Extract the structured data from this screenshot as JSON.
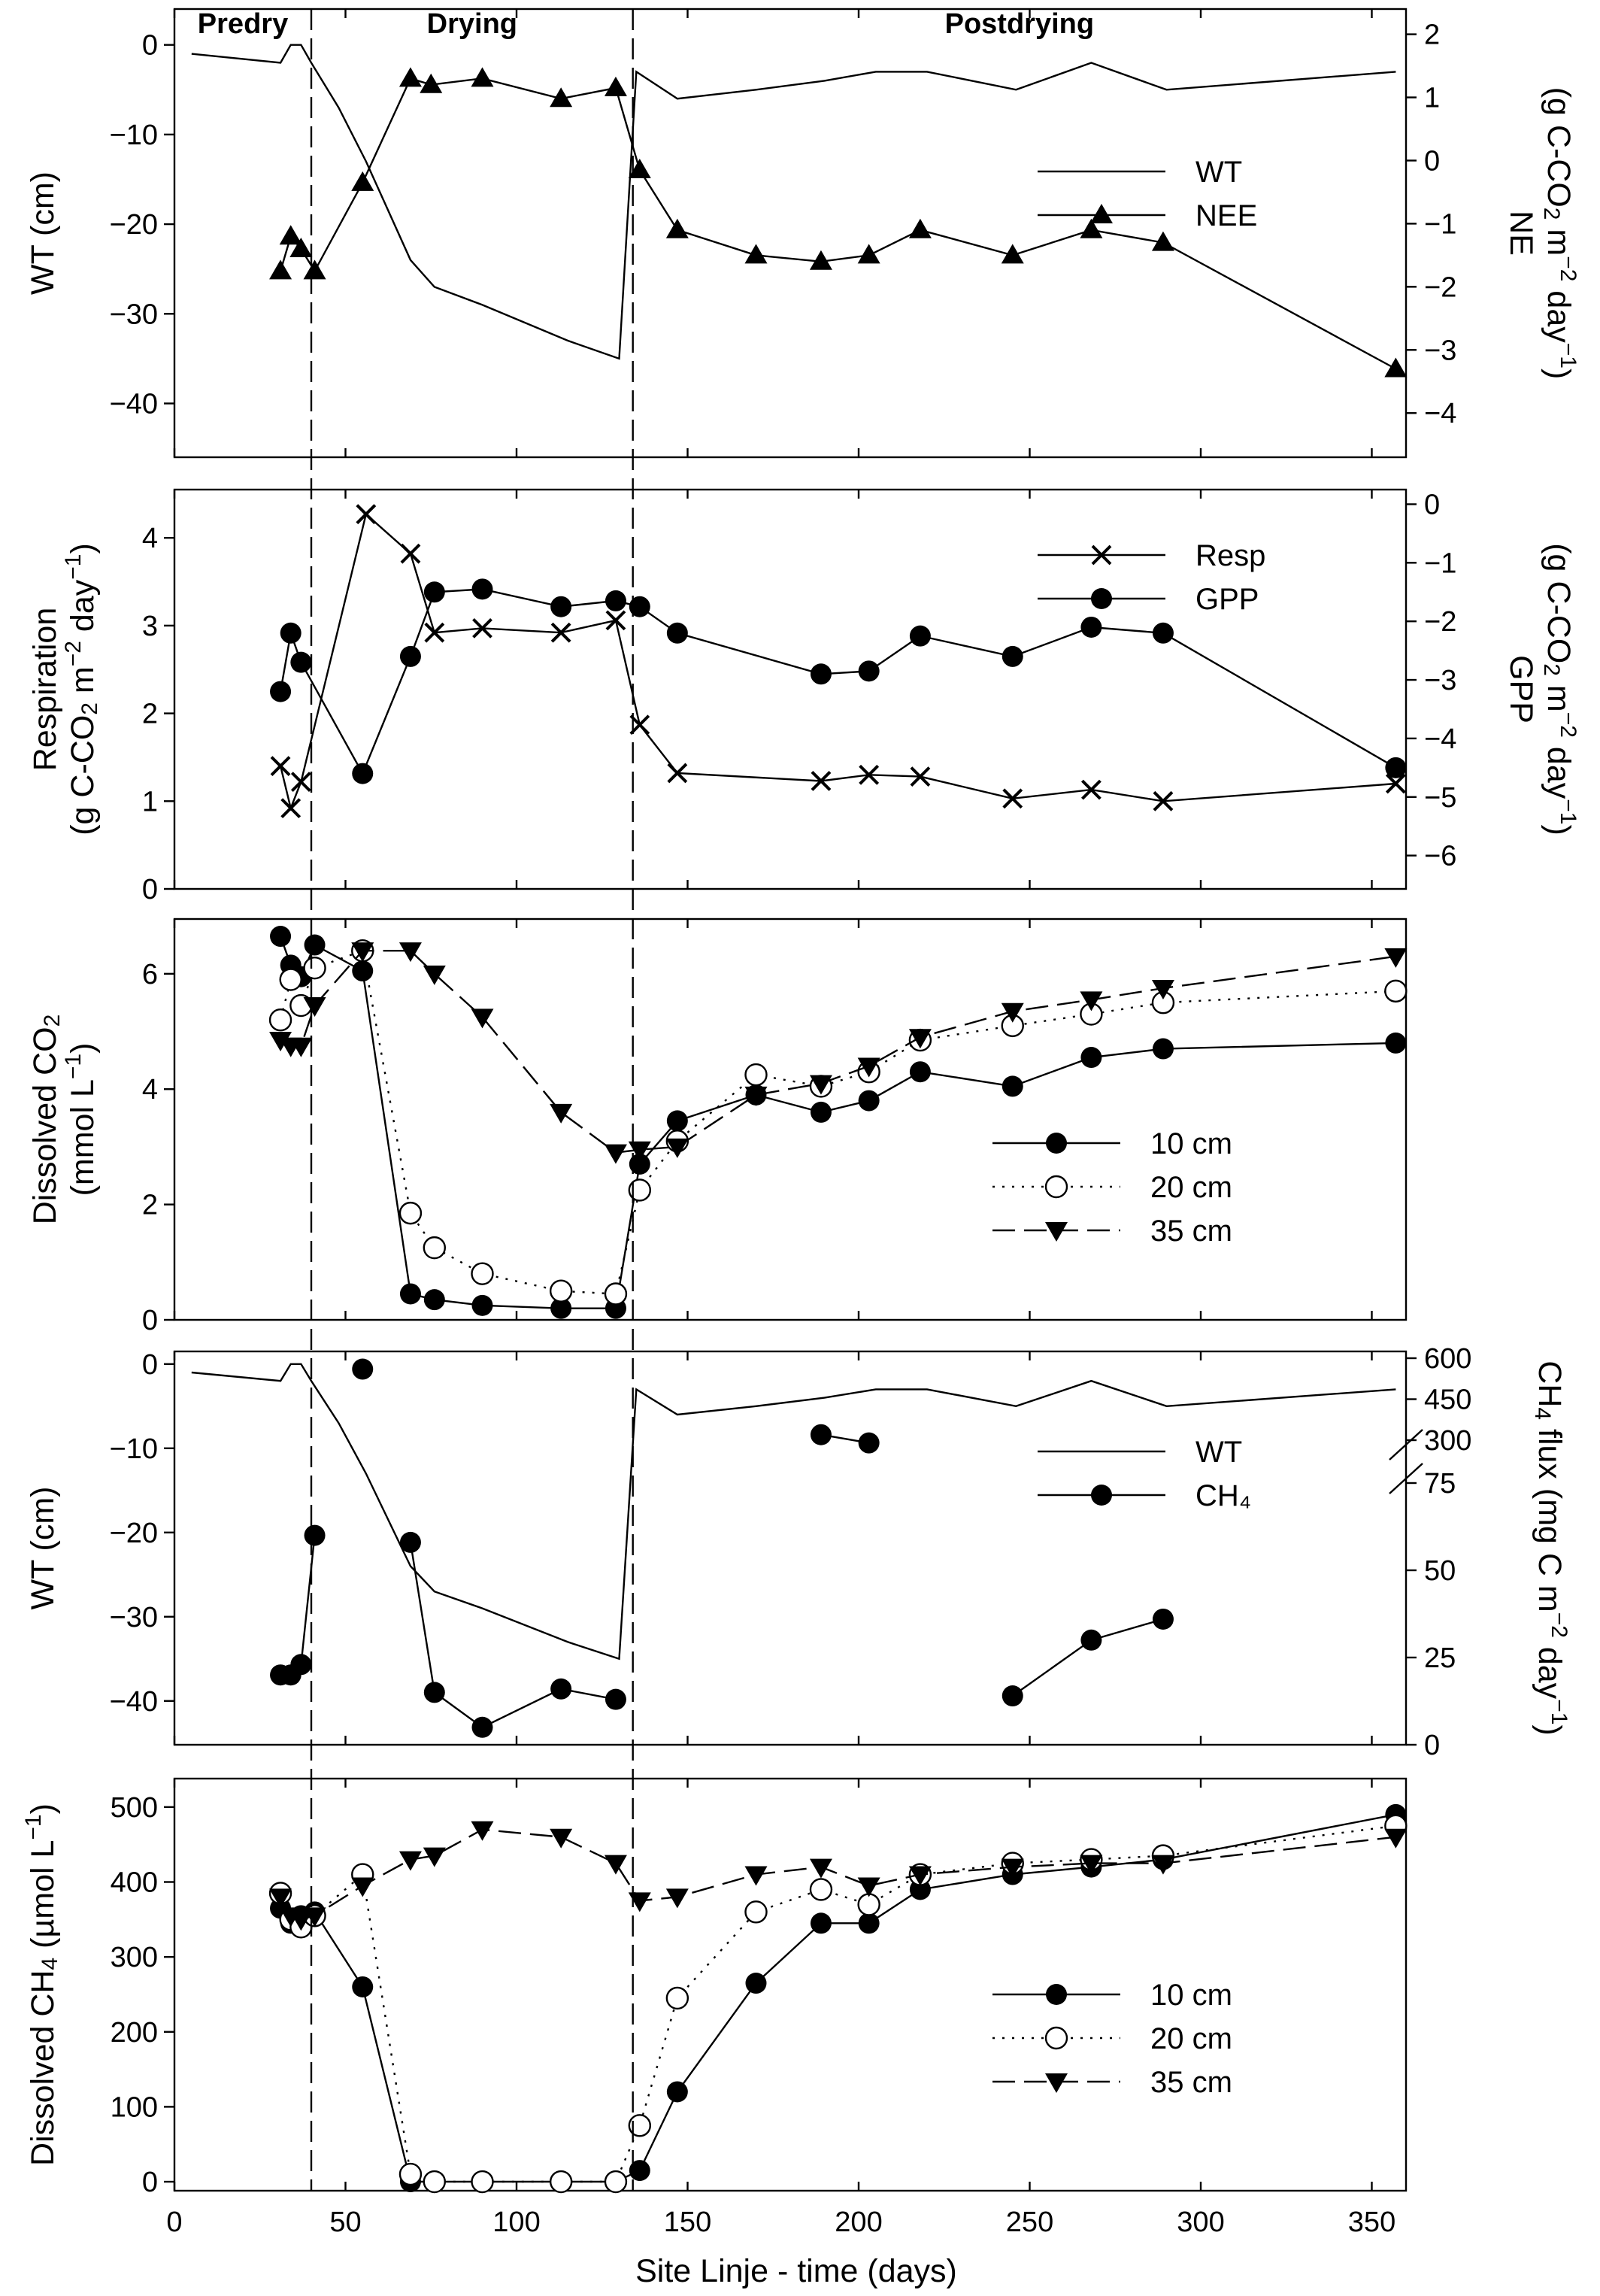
{
  "figure": {
    "x_axis_label": "Site Linje - time (days)",
    "x_ticks": [
      0,
      50,
      100,
      150,
      200,
      250,
      300,
      350
    ],
    "x_range": [
      0,
      360
    ],
    "phases": [
      {
        "label": "Predry",
        "from": 0,
        "to": 40
      },
      {
        "label": "Drying",
        "from": 40,
        "to": 134
      },
      {
        "label": "Postdrying",
        "from": 134,
        "to": 360
      }
    ],
    "phase_dividers": [
      40,
      134
    ]
  },
  "chart_data": [
    {
      "type": "line",
      "panel": "wt-nee",
      "y_label": "WT (cm)",
      "y2_label": "NE (g C-CO₂ m⁻² day⁻¹)",
      "ylim": [
        -46,
        4
      ],
      "y_ticks": [
        0,
        -10,
        -20,
        -30,
        -40
      ],
      "y2lim": [
        -4.7,
        2.4
      ],
      "y2_ticks": [
        2,
        1,
        0,
        -1,
        -2,
        -3,
        -4
      ],
      "series": [
        {
          "name": "WT",
          "axis": "left",
          "marker": "none",
          "dash": "solid",
          "x": [
            5,
            31,
            34,
            37,
            40,
            48,
            56,
            69,
            76,
            90,
            115,
            130,
            135,
            147,
            170,
            190,
            205,
            220,
            246,
            268,
            290,
            357
          ],
          "y": [
            -1,
            -2,
            0,
            0,
            -2,
            -7,
            -13,
            -24,
            -27,
            -29,
            -33,
            -35,
            -3,
            -6,
            -5,
            -4,
            -3,
            -3,
            -5,
            -2,
            -5,
            -3
          ]
        },
        {
          "name": "NEE",
          "axis": "right",
          "marker": "triangle-up-filled",
          "dash": "solid",
          "x": [
            31,
            34,
            37,
            41,
            55,
            69,
            75,
            90,
            113,
            129,
            136,
            147,
            170,
            189,
            203,
            218,
            245,
            268,
            289,
            357
          ],
          "y": [
            -1.75,
            -1.2,
            -1.4,
            -1.75,
            -0.35,
            1.3,
            1.2,
            1.3,
            0.98,
            1.15,
            -0.15,
            -1.1,
            -1.5,
            -1.6,
            -1.5,
            -1.1,
            -1.5,
            -1.1,
            -1.3,
            -3.3
          ]
        }
      ]
    },
    {
      "type": "line",
      "panel": "resp-gpp",
      "y_label": "Respiration (g C-CO₂ m⁻² day⁻¹)",
      "y2_label": "GPP (g C-CO₂ m⁻² day⁻¹)",
      "ylim": [
        0,
        4.55
      ],
      "y_ticks": [
        0,
        1,
        2,
        3,
        4
      ],
      "y2lim": [
        -6.57,
        0.25
      ],
      "y2_ticks": [
        0,
        -1,
        -2,
        -3,
        -4,
        -5,
        -6
      ],
      "series": [
        {
          "name": "Resp",
          "axis": "left",
          "marker": "x",
          "dash": "solid",
          "x": [
            31,
            34,
            37,
            56,
            69,
            76,
            90,
            113,
            129,
            136,
            147,
            189,
            203,
            218,
            245,
            268,
            289,
            357
          ],
          "y": [
            1.4,
            0.92,
            1.22,
            4.27,
            3.82,
            2.92,
            2.97,
            2.92,
            3.06,
            1.87,
            1.32,
            1.23,
            1.3,
            1.28,
            1.03,
            1.13,
            1.0,
            1.2
          ]
        },
        {
          "name": "GPP",
          "axis": "right",
          "marker": "circle-filled",
          "dash": "solid",
          "x": [
            31,
            34,
            37,
            55,
            69,
            76,
            90,
            113,
            129,
            136,
            147,
            189,
            203,
            218,
            245,
            268,
            289,
            357
          ],
          "y": [
            -3.2,
            -2.2,
            -2.7,
            -4.6,
            -2.6,
            -1.5,
            -1.45,
            -1.75,
            -1.65,
            -1.75,
            -2.2,
            -2.9,
            -2.85,
            -2.25,
            -2.6,
            -2.1,
            -2.2,
            -4.5
          ]
        }
      ]
    },
    {
      "type": "line",
      "panel": "dissolved-co2",
      "y_label": "Dissolved CO₂ (mmol L⁻¹)",
      "ylim": [
        0,
        6.95
      ],
      "y_ticks": [
        0,
        2,
        4,
        6
      ],
      "series": [
        {
          "name": "10 cm",
          "marker": "circle-filled",
          "dash": "solid",
          "x": [
            31,
            34,
            37,
            41,
            55,
            69,
            76,
            90,
            113,
            129,
            136,
            147,
            170,
            189,
            203,
            218,
            245,
            268,
            289,
            357
          ],
          "y": [
            6.65,
            6.15,
            5.95,
            6.5,
            6.05,
            0.45,
            0.35,
            0.25,
            0.2,
            0.2,
            2.7,
            3.45,
            3.9,
            3.6,
            3.8,
            4.3,
            4.05,
            4.55,
            4.7,
            4.8
          ]
        },
        {
          "name": "20 cm",
          "marker": "circle-open",
          "dash": "dotted",
          "x": [
            31,
            34,
            37,
            41,
            55,
            69,
            76,
            90,
            113,
            129,
            136,
            147,
            170,
            189,
            203,
            218,
            245,
            268,
            289,
            357
          ],
          "y": [
            5.2,
            5.9,
            5.45,
            6.1,
            6.4,
            1.85,
            1.25,
            0.8,
            0.5,
            0.45,
            2.25,
            3.1,
            4.25,
            4.05,
            4.3,
            4.85,
            5.1,
            5.3,
            5.5,
            5.7
          ]
        },
        {
          "name": "35 cm",
          "marker": "triangle-down-filled",
          "dash": "dashed",
          "x": [
            31,
            34,
            37,
            41,
            55,
            69,
            76,
            90,
            113,
            129,
            136,
            147,
            170,
            189,
            203,
            218,
            245,
            268,
            289,
            357
          ],
          "y": [
            4.85,
            4.75,
            4.75,
            5.45,
            6.4,
            6.4,
            6.0,
            5.25,
            3.6,
            2.9,
            2.95,
            3.0,
            3.9,
            4.1,
            4.4,
            4.9,
            5.35,
            5.55,
            5.75,
            6.3
          ]
        }
      ]
    },
    {
      "type": "line",
      "panel": "wt-ch4",
      "y_label": "WT (cm)",
      "y2_label": "CH₄ flux (mg C m⁻² day⁻¹)",
      "ylim": [
        -45.2,
        1.5
      ],
      "y_ticks": [
        0,
        -10,
        -20,
        -30,
        -40
      ],
      "y2lim": [
        0,
        600
      ],
      "y2_ticks": [
        {
          "label": "0",
          "value": 0
        },
        {
          "label": "25",
          "value": 25
        },
        {
          "label": "50",
          "value": 50
        },
        {
          "label": "75",
          "value": 75
        },
        {
          "label": "300",
          "value": 300
        },
        {
          "label": "450",
          "value": 450
        },
        {
          "label": "600",
          "value": 600
        }
      ],
      "y2_axis_break": "between 75 and 300",
      "series": [
        {
          "name": "WT",
          "axis": "left",
          "marker": "none",
          "dash": "solid",
          "x": [
            5,
            31,
            34,
            37,
            40,
            48,
            56,
            69,
            76,
            90,
            115,
            130,
            135,
            147,
            170,
            190,
            205,
            220,
            246,
            268,
            290,
            357
          ],
          "y": [
            -1,
            -2,
            0,
            0,
            -2,
            -7,
            -13,
            -24,
            -27,
            -29,
            -33,
            -35,
            -3,
            -6,
            -5,
            -4,
            -3,
            -3,
            -5,
            -2,
            -5,
            -3
          ]
        },
        {
          "name": "CH₄",
          "axis": "right",
          "marker": "circle-filled",
          "dash": "solid",
          "segments": [
            {
              "x": [
                31,
                34,
                37,
                41
              ],
              "y": [
                20,
                20,
                23,
                60
              ]
            },
            {
              "x": [
                55
              ],
              "y": [
                560
              ]
            },
            {
              "x": [
                69,
                76,
                90,
                113,
                129
              ],
              "y": [
                58,
                15,
                5,
                16,
                13
              ]
            },
            {
              "x": [
                189,
                203
              ],
              "y": [
                320,
                290
              ]
            },
            {
              "x": [
                245,
                268,
                289
              ],
              "y": [
                14,
                30,
                36
              ]
            }
          ]
        }
      ]
    },
    {
      "type": "line",
      "panel": "dissolved-ch4",
      "y_label": "Dissolved CH₄ (µmol L⁻¹)",
      "ylim": [
        -12,
        538
      ],
      "y_ticks": [
        0,
        100,
        200,
        300,
        400,
        500
      ],
      "series": [
        {
          "name": "10 cm",
          "marker": "circle-filled",
          "dash": "solid",
          "x": [
            31,
            34,
            37,
            41,
            55,
            69,
            76,
            90,
            113,
            129,
            136,
            147,
            170,
            189,
            203,
            218,
            245,
            268,
            289,
            357
          ],
          "y": [
            365,
            345,
            355,
            360,
            260,
            0,
            0,
            0,
            0,
            0,
            15,
            120,
            265,
            345,
            345,
            390,
            410,
            420,
            430,
            490
          ]
        },
        {
          "name": "20 cm",
          "marker": "circle-open",
          "dash": "dotted",
          "x": [
            31,
            34,
            37,
            41,
            55,
            69,
            76,
            90,
            113,
            129,
            136,
            147,
            170,
            189,
            203,
            218,
            245,
            268,
            289,
            357
          ],
          "y": [
            385,
            350,
            340,
            355,
            410,
            10,
            0,
            0,
            0,
            0,
            75,
            245,
            360,
            390,
            370,
            410,
            425,
            430,
            435,
            475
          ]
        },
        {
          "name": "35 cm",
          "marker": "triangle-down-filled",
          "dash": "dashed",
          "x": [
            31,
            34,
            37,
            41,
            55,
            69,
            76,
            90,
            113,
            129,
            136,
            147,
            170,
            189,
            203,
            218,
            245,
            268,
            289,
            357
          ],
          "y": [
            380,
            355,
            350,
            355,
            395,
            430,
            435,
            470,
            460,
            425,
            375,
            380,
            410,
            420,
            395,
            410,
            420,
            425,
            425,
            460
          ]
        }
      ]
    }
  ]
}
